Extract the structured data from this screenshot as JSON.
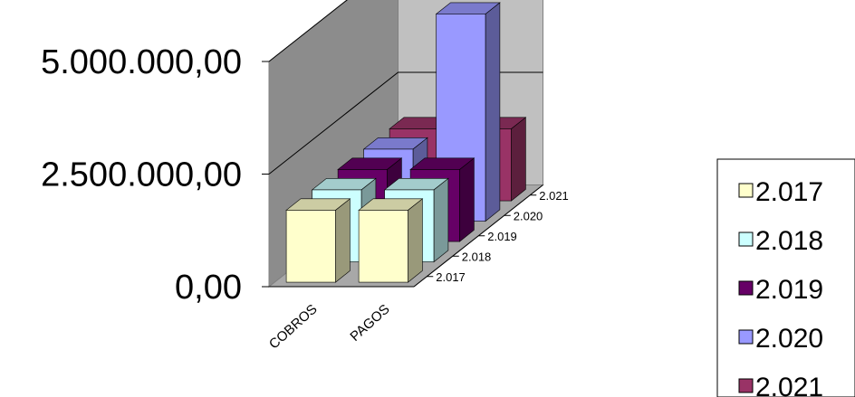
{
  "chart_data": {
    "type": "bar",
    "categories": [
      "COBROS",
      "PAGOS"
    ],
    "series": [
      {
        "name": "2.017",
        "values": [
          1600000,
          1600000
        ],
        "color": "#FFFFCC"
      },
      {
        "name": "2.018",
        "values": [
          1600000,
          1600000
        ],
        "color": "#CCFFFF"
      },
      {
        "name": "2.019",
        "values": [
          1600000,
          1600000
        ],
        "color": "#660066"
      },
      {
        "name": "2.020",
        "values": [
          1600000,
          4600000
        ],
        "color": "#9999FF"
      },
      {
        "name": "2.021",
        "values": [
          1600000,
          1600000
        ],
        "color": "#993366"
      }
    ],
    "y_ticks": [
      "0,00",
      "2.500.000,00",
      "5.000.000,00"
    ],
    "ylim": [
      0,
      5000000
    ],
    "depth_labels": [
      "2.017",
      "2.018",
      "2.019",
      "2.020",
      "2.021"
    ],
    "legend_position": "right",
    "grid": true,
    "title": "",
    "xlabel": "",
    "ylabel": ""
  }
}
